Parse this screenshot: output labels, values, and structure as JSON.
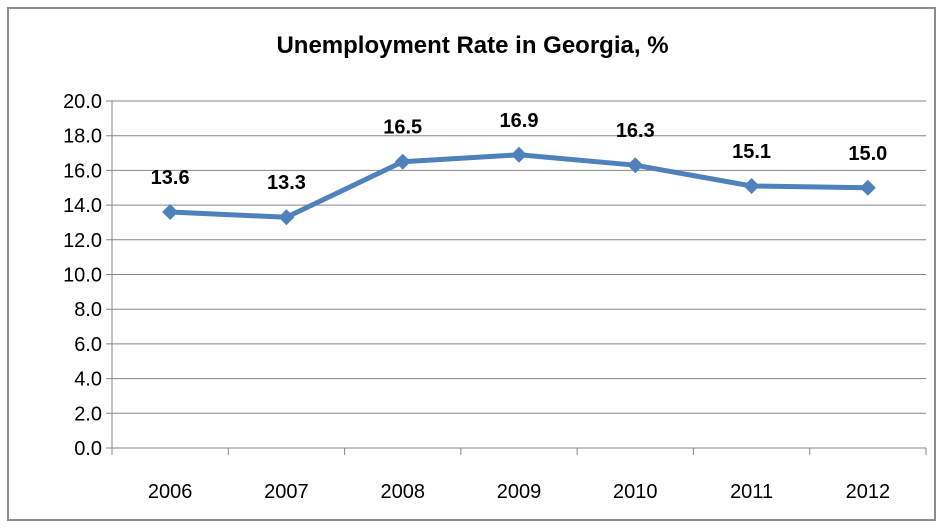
{
  "chart_data": {
    "type": "line",
    "title": "Unemployment Rate in Georgia, %",
    "xlabel": "",
    "ylabel": "",
    "categories": [
      "2006",
      "2007",
      "2008",
      "2009",
      "2010",
      "2011",
      "2012"
    ],
    "series": [
      {
        "values": [
          13.6,
          13.3,
          16.5,
          16.9,
          16.3,
          15.1,
          15.0
        ],
        "data_labels": [
          "13.6",
          "13.3",
          "16.5",
          "16.9",
          "16.3",
          "15.1",
          "15.0"
        ],
        "color": "#4f81bd",
        "marker": "diamond"
      }
    ],
    "ylim": [
      0,
      20
    ],
    "ytick_labels": [
      "0.0",
      "2.0",
      "4.0",
      "6.0",
      "8.0",
      "10.0",
      "12.0",
      "14.0",
      "16.0",
      "18.0",
      "20.0"
    ],
    "grid": "horizontal",
    "legend": "none"
  },
  "colors": {
    "line": "#4f81bd",
    "grid": "#878787",
    "axis": "#878787",
    "text": "#000000"
  }
}
